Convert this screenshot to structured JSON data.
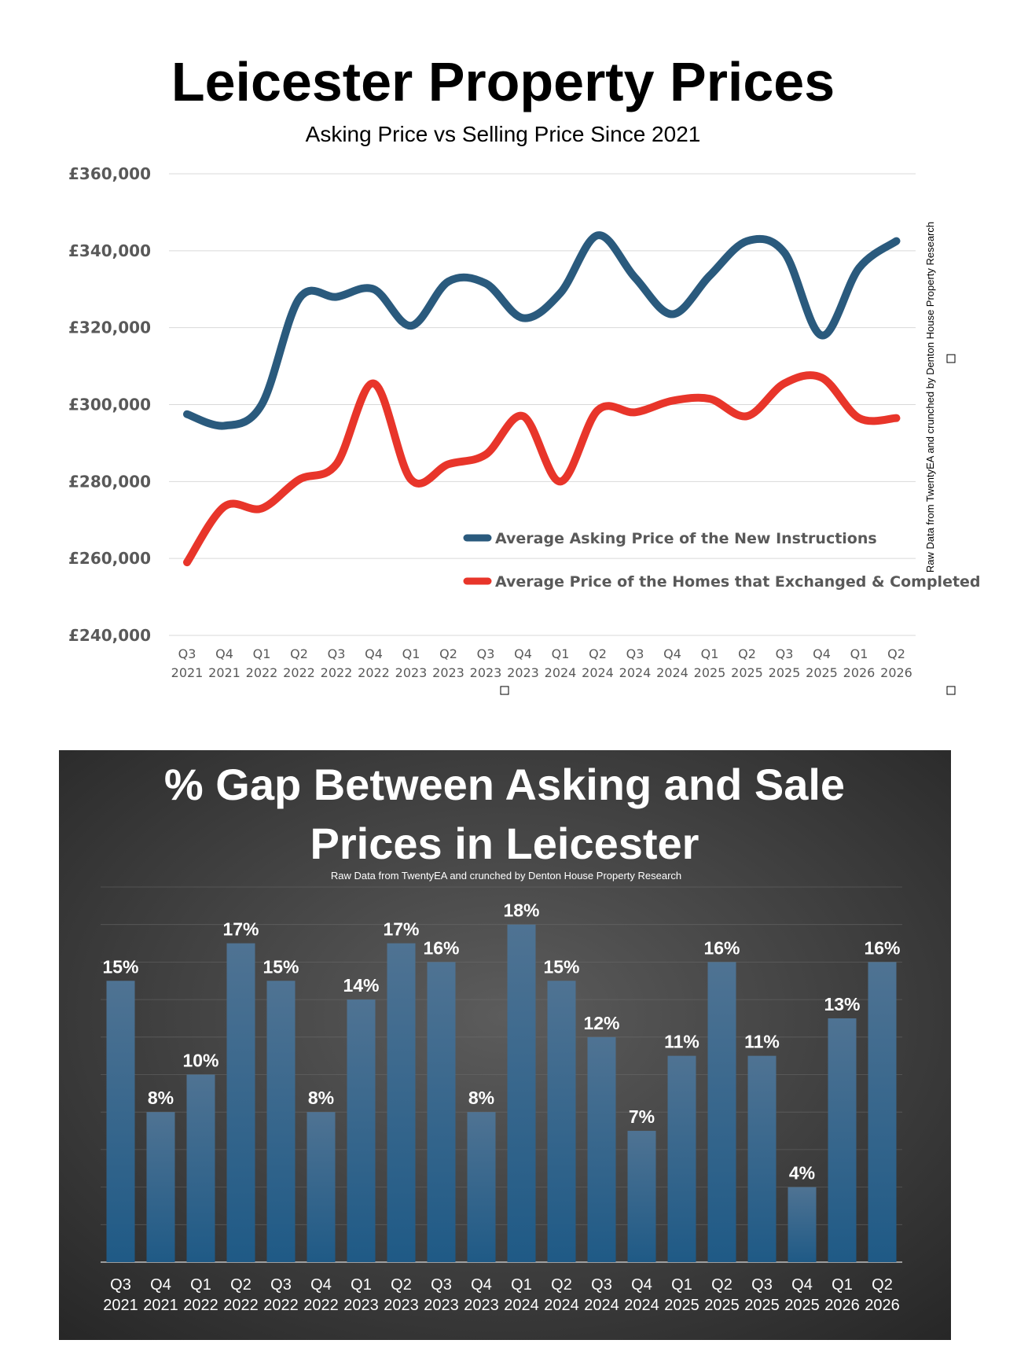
{
  "chart_data": [
    {
      "type": "line",
      "title": "Leicester Property Prices",
      "subtitle": "Asking Price vs Selling Price Since 2021",
      "side_note": "Raw Data from TwentyEA and crunched by Denton House Property Research",
      "categories": [
        [
          "Q3",
          "2021"
        ],
        [
          "Q4",
          "2021"
        ],
        [
          "Q1",
          "2022"
        ],
        [
          "Q2",
          "2022"
        ],
        [
          "Q3",
          "2022"
        ],
        [
          "Q4",
          "2022"
        ],
        [
          "Q1",
          "2023"
        ],
        [
          "Q2",
          "2023"
        ],
        [
          "Q3",
          "2023"
        ],
        [
          "Q4",
          "2023"
        ],
        [
          "Q1",
          "2024"
        ],
        [
          "Q2",
          "2024"
        ],
        [
          "Q3",
          "2024"
        ],
        [
          "Q4",
          "2024"
        ],
        [
          "Q1",
          "2025"
        ],
        [
          "Q2",
          "2025"
        ],
        [
          "Q3",
          "2025"
        ],
        [
          "Q4",
          "2025"
        ],
        [
          "Q1",
          "2026"
        ],
        [
          "Q2",
          "2026"
        ]
      ],
      "ylim": [
        240000,
        360000
      ],
      "yticks": [
        240000,
        260000,
        280000,
        300000,
        320000,
        340000,
        360000
      ],
      "ytick_labels": [
        "£240,000",
        "£260,000",
        "£280,000",
        "£300,000",
        "£320,000",
        "£340,000",
        "£360,000"
      ],
      "grid": true,
      "legend_position": "bottom-right",
      "series": [
        {
          "name": "Average Asking Price of the New Instructions",
          "color": "#2a5a7d",
          "values": [
            297500,
            294500,
            300000,
            327500,
            328000,
            330000,
            320500,
            332000,
            331500,
            322500,
            329000,
            344000,
            333000,
            323500,
            333500,
            342500,
            339500,
            318000,
            335500,
            342500
          ]
        },
        {
          "name": "Average Price of the Homes that Exchanged & Completed",
          "color": "#e8352a",
          "values": [
            259000,
            273500,
            273000,
            280500,
            284500,
            305500,
            280500,
            284500,
            287000,
            297000,
            280000,
            298500,
            298000,
            301000,
            301500,
            297000,
            305500,
            307000,
            296500,
            296500
          ]
        }
      ]
    },
    {
      "type": "bar",
      "title": "% Gap Between Asking and Sale Prices in Leicester",
      "title_lines": [
        "% Gap Between Asking and Sale",
        "Prices in Leicester"
      ],
      "subtitle": "Raw Data from TwentyEA and crunched by Denton House Property Research",
      "categories": [
        [
          "Q3",
          "2021"
        ],
        [
          "Q4",
          "2021"
        ],
        [
          "Q1",
          "2022"
        ],
        [
          "Q2",
          "2022"
        ],
        [
          "Q3",
          "2022"
        ],
        [
          "Q4",
          "2022"
        ],
        [
          "Q1",
          "2023"
        ],
        [
          "Q2",
          "2023"
        ],
        [
          "Q3",
          "2023"
        ],
        [
          "Q4",
          "2023"
        ],
        [
          "Q1",
          "2024"
        ],
        [
          "Q2",
          "2024"
        ],
        [
          "Q3",
          "2024"
        ],
        [
          "Q4",
          "2024"
        ],
        [
          "Q1",
          "2025"
        ],
        [
          "Q2",
          "2025"
        ],
        [
          "Q3",
          "2025"
        ],
        [
          "Q4",
          "2025"
        ],
        [
          "Q1",
          "2026"
        ],
        [
          "Q2",
          "2026"
        ]
      ],
      "values": [
        15,
        8,
        10,
        17,
        15,
        8,
        14,
        17,
        16,
        8,
        18,
        15,
        12,
        7,
        11,
        16,
        11,
        4,
        13,
        16
      ],
      "labels": [
        "15%",
        "8%",
        "10%",
        "17%",
        "15%",
        "8%",
        "14%",
        "17%",
        "16%",
        "8%",
        "18%",
        "15%",
        "12%",
        "7%",
        "11%",
        "16%",
        "11%",
        "4%",
        "13%",
        "16%"
      ],
      "ylim": [
        0,
        20
      ],
      "grid": true,
      "colors": {
        "bar_top": "#4f7393",
        "bar_bottom": "#1f5a86",
        "background_center": "#5a5a5a",
        "background_edge": "#262626"
      }
    }
  ]
}
